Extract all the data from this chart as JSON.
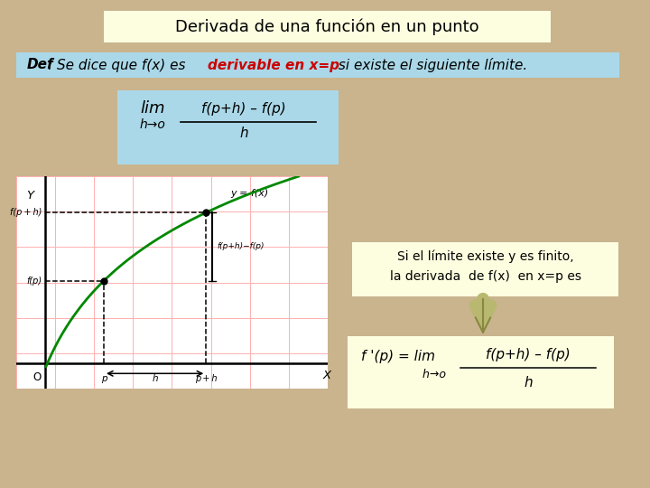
{
  "bg_color": "#c9b48e",
  "title_text": "Derivada de una función en un punto",
  "title_bg": "#fdfde0",
  "def_bg": "#aad8e8",
  "limit_box_bg": "#aad8e8",
  "note_bg": "#fdfde0",
  "formula_bg": "#fdfde0",
  "note_text1": "Si el límite existe y es finito,",
  "note_text2": "la derivada  de f(x)  en x=p es",
  "curve_color": "#008800",
  "red_color": "#cc0000",
  "black": "#000000",
  "graph_grid_color": "#ffb0b0"
}
